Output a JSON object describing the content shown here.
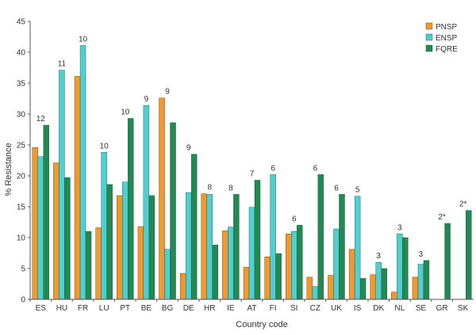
{
  "chart_data": {
    "type": "bar",
    "xlabel": "Country code",
    "ylabel": "% Resistance",
    "ylim": [
      0,
      45
    ],
    "yticks": [
      0,
      5,
      10,
      15,
      20,
      25,
      30,
      35,
      40,
      45
    ],
    "grid": false,
    "legend_position": "top-right",
    "categories": [
      "ES",
      "HU",
      "FR",
      "LU",
      "PT",
      "BE",
      "BG",
      "DE",
      "HR",
      "IE",
      "AT",
      "FI",
      "SI",
      "CZ",
      "UK",
      "IS",
      "DK",
      "NL",
      "SE",
      "GR",
      "SK"
    ],
    "series": [
      {
        "name": "PNSP",
        "color": "#f09a2e",
        "values": [
          24.6,
          22.1,
          36.1,
          11.6,
          16.8,
          11.8,
          32.6,
          4.2,
          17.1,
          11.1,
          5.2,
          6.9,
          10.6,
          3.6,
          3.9,
          8.1,
          4.0,
          1.2,
          3.6,
          null,
          null
        ]
      },
      {
        "name": "ENSP",
        "color": "#4ecfd0",
        "values": [
          23.1,
          37.1,
          41.1,
          23.8,
          19.0,
          31.4,
          8.1,
          17.3,
          17.0,
          11.7,
          14.9,
          20.2,
          11.0,
          2.1,
          11.4,
          16.7,
          6.0,
          10.6,
          5.7,
          null,
          null
        ]
      },
      {
        "name": "FQRE",
        "color": "#1f8a52",
        "values": [
          28.2,
          19.7,
          11.0,
          18.6,
          29.3,
          16.8,
          28.6,
          23.5,
          8.8,
          17.0,
          19.3,
          7.4,
          12.0,
          20.2,
          17.0,
          3.4,
          5.0,
          10.0,
          6.3,
          12.3,
          14.4
        ]
      }
    ],
    "annotations": [
      "12",
      "11",
      "10",
      "10",
      "10",
      "9",
      "9",
      "9",
      "8",
      "8",
      "7",
      "6",
      "6",
      "6",
      "6",
      "5",
      "3",
      "3",
      "3",
      "2*",
      "2*"
    ]
  }
}
